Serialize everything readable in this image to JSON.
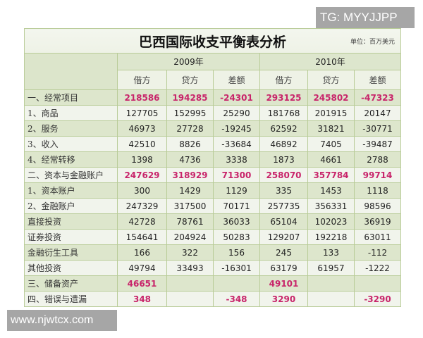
{
  "watermarks": {
    "top": "TG: MYYJJPP",
    "bottom": "www.njwtcx.com"
  },
  "table": {
    "title": "巴西国际收支平衡表分析",
    "unit": "单位：百万美元",
    "years": [
      "2009年",
      "2010年"
    ],
    "subheaders": [
      "借方",
      "贷方",
      "差额",
      "借方",
      "贷方",
      "差额"
    ],
    "rows": [
      {
        "label": "一、经常项目",
        "values": [
          "218586",
          "194285",
          "-24301",
          "293125",
          "245802",
          "-47323"
        ]
      },
      {
        "label": "1、商品",
        "values": [
          "127705",
          "152995",
          "25290",
          "181768",
          "201915",
          "20147"
        ]
      },
      {
        "label": "2、服务",
        "values": [
          "46973",
          "27728",
          "-19245",
          "62592",
          "31821",
          "-30771"
        ]
      },
      {
        "label": "3、收入",
        "values": [
          "42510",
          "8826",
          "-33684",
          "46892",
          "7405",
          "-39487"
        ]
      },
      {
        "label": "4、经常转移",
        "values": [
          "1398",
          "4736",
          "3338",
          "1873",
          "4661",
          "2788"
        ]
      },
      {
        "label": "二、资本与金融账户",
        "values": [
          "247629",
          "318929",
          "71300",
          "258070",
          "357784",
          "99714"
        ]
      },
      {
        "label": "1、资本账户",
        "values": [
          "300",
          "1429",
          "1129",
          "335",
          "1453",
          "1118"
        ]
      },
      {
        "label": "2、金融账户",
        "values": [
          "247329",
          "317500",
          "70171",
          "257735",
          "356331",
          "98596"
        ]
      },
      {
        "label": "直接投资",
        "values": [
          "42728",
          "78761",
          "36033",
          "65104",
          "102023",
          "36919"
        ]
      },
      {
        "label": "证券投资",
        "values": [
          "154641",
          "204924",
          "50283",
          "129207",
          "192218",
          "63011"
        ]
      },
      {
        "label": "金融衍生工具",
        "values": [
          "166",
          "322",
          "156",
          "245",
          "133",
          "-112"
        ]
      },
      {
        "label": "其他投资",
        "values": [
          "49794",
          "33493",
          "-16301",
          "63179",
          "61957",
          "-1222"
        ]
      },
      {
        "label": "三、储备资产",
        "values": [
          "46651",
          "",
          "",
          "49101",
          "",
          ""
        ]
      },
      {
        "label": "四、错误与遗漏",
        "values": [
          "348",
          "",
          "-348",
          "3290",
          "",
          "-3290"
        ]
      }
    ]
  },
  "colors": {
    "highlight": "#c8246a",
    "row_light": "#f1f4ec",
    "row_dark": "#dde6cc",
    "border": "#b9cc98"
  }
}
